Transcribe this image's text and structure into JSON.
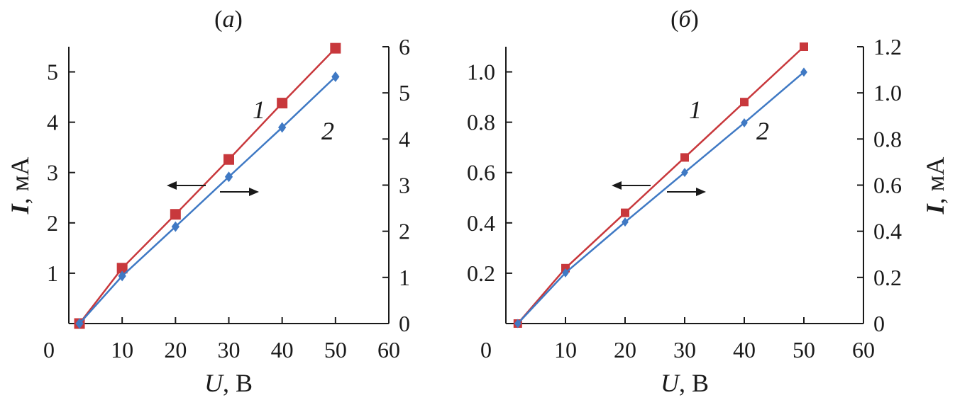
{
  "chart_data": [
    {
      "type": "line",
      "panel_label": "(а)",
      "xlabel_var": "U",
      "xlabel_unit": ", В",
      "ylabel_var": "I",
      "ylabel_unit": ", мА",
      "ylabel_side": "left",
      "xlim": [
        0,
        60
      ],
      "x_ticks": [
        "0",
        "10",
        "20",
        "30",
        "40",
        "50",
        "60"
      ],
      "ylim_left": [
        0,
        5.5
      ],
      "y_ticks_left": [
        "1",
        "2",
        "3",
        "4",
        "5"
      ],
      "ylim_right": [
        0,
        6
      ],
      "y_ticks_right": [
        "0",
        "1",
        "2",
        "3",
        "4",
        "5",
        "6"
      ],
      "series": [
        {
          "name": "1",
          "axis": "left",
          "color": "#c8383c",
          "marker": "square",
          "x": [
            2,
            10,
            20,
            30,
            40,
            50
          ],
          "values": [
            0,
            1.1,
            2.17,
            3.26,
            4.38,
            5.47
          ]
        },
        {
          "name": "2",
          "axis": "right",
          "color": "#3f79c4",
          "marker": "diamond",
          "x": [
            2,
            10,
            20,
            30,
            40,
            50
          ],
          "values": [
            0,
            1.03,
            2.1,
            3.18,
            4.25,
            5.35
          ]
        }
      ],
      "annotations": [
        "arrow-left",
        "arrow-right"
      ]
    },
    {
      "type": "line",
      "panel_label": "(б)",
      "xlabel_var": "U",
      "xlabel_unit": ", В",
      "ylabel_var": "I",
      "ylabel_unit": ", мА",
      "ylabel_side": "right",
      "xlim": [
        0,
        60
      ],
      "x_ticks": [
        "0",
        "10",
        "20",
        "30",
        "40",
        "50",
        "60"
      ],
      "ylim_left": [
        0,
        1.1
      ],
      "y_ticks_left": [
        "0.2",
        "0.4",
        "0.6",
        "0.8",
        "1.0"
      ],
      "ylim_right": [
        0,
        1.2
      ],
      "y_ticks_right": [
        "0",
        "0.2",
        "0.4",
        "0.6",
        "0.8",
        "1.0",
        "1.2"
      ],
      "series": [
        {
          "name": "1",
          "axis": "left",
          "color": "#c8383c",
          "marker": "square",
          "x": [
            2,
            10,
            20,
            30,
            40,
            50
          ],
          "values": [
            0,
            0.22,
            0.44,
            0.66,
            0.88,
            1.1
          ]
        },
        {
          "name": "2",
          "axis": "right",
          "color": "#3f79c4",
          "marker": "diamond",
          "x": [
            2,
            10,
            20,
            30,
            40,
            50
          ],
          "values": [
            0,
            0.22,
            0.44,
            0.655,
            0.87,
            1.09
          ]
        }
      ],
      "annotations": [
        "arrow-left",
        "arrow-right"
      ]
    }
  ]
}
